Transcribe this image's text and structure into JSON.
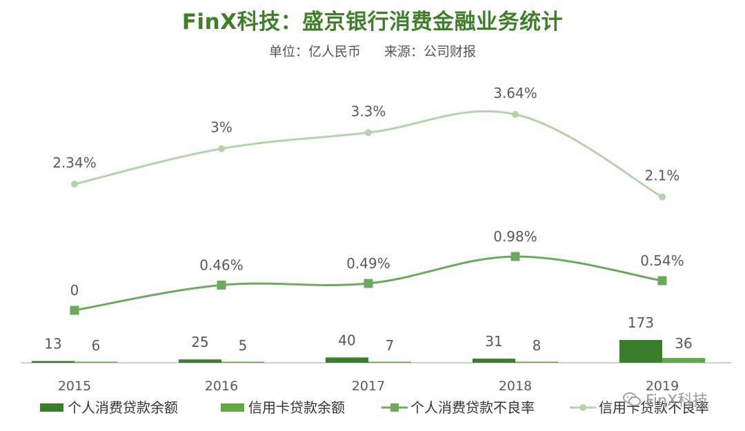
{
  "title": "FinX科技：盛京银行消费金融业务统计",
  "subtitle": {
    "unit": "单位：亿人民币",
    "source": "来源：公司财报"
  },
  "watermark": "FinX科技",
  "colors": {
    "title": "#3f7f2a",
    "bar_personal": "#3a7d2a",
    "bar_credit": "#5fa843",
    "line_personal_npl": "#6aaa5a",
    "line_credit_npl": "#b5d2a8",
    "axis": "#bfbfbf",
    "label": "#595959"
  },
  "chart_data": {
    "type": "bar",
    "categories": [
      "2015",
      "2016",
      "2017",
      "2018",
      "2019"
    ],
    "series": [
      {
        "name": "个人消费贷款余额",
        "kind": "bar",
        "values": [
          13,
          25,
          40,
          31,
          173
        ],
        "labels": [
          "13",
          "25",
          "40",
          "31",
          "173"
        ]
      },
      {
        "name": "信用卡贷款余额",
        "kind": "bar",
        "values": [
          6,
          5,
          7,
          8,
          36
        ],
        "labels": [
          "6",
          "5",
          "7",
          "8",
          "36"
        ]
      },
      {
        "name": "个人消费贷款不良率",
        "kind": "line",
        "marker": "square",
        "values": [
          0,
          0.46,
          0.49,
          0.98,
          0.54
        ],
        "labels": [
          "0",
          "0.46%",
          "0.49%",
          "0.98%",
          "0.54%"
        ]
      },
      {
        "name": "信用卡贷款不良率",
        "kind": "line",
        "marker": "circle",
        "values": [
          2.34,
          3,
          3.3,
          3.64,
          2.1
        ],
        "labels": [
          "2.34%",
          "3%",
          "3.3%",
          "3.64%",
          "2.1%"
        ]
      }
    ],
    "legend_position": "bottom",
    "grid": false
  }
}
